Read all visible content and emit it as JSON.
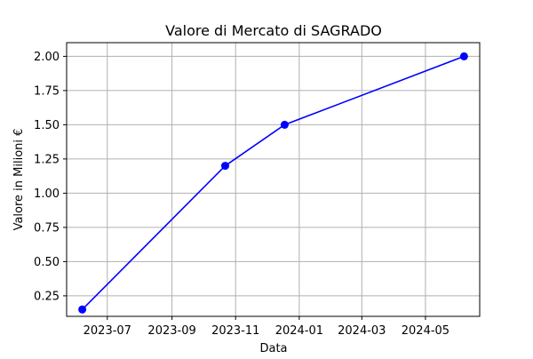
{
  "chart_data": {
    "type": "line",
    "title": "Valore di Mercato di SAGRADO",
    "xlabel": "Data",
    "ylabel": "Valore in Milioni €",
    "x_scale": "date",
    "xlim": [
      "2023-05-23",
      "2024-06-22"
    ],
    "ylim": [
      0.1,
      2.1
    ],
    "x_ticks": [
      {
        "date": "2023-07-01",
        "label": "2023-07"
      },
      {
        "date": "2023-09-01",
        "label": "2023-09"
      },
      {
        "date": "2023-11-01",
        "label": "2023-11"
      },
      {
        "date": "2024-01-01",
        "label": "2024-01"
      },
      {
        "date": "2024-03-01",
        "label": "2024-03"
      },
      {
        "date": "2024-05-01",
        "label": "2024-05"
      }
    ],
    "y_ticks": [
      {
        "value": 0.25,
        "label": "0.25"
      },
      {
        "value": 0.5,
        "label": "0.50"
      },
      {
        "value": 0.75,
        "label": "0.75"
      },
      {
        "value": 1.0,
        "label": "1.00"
      },
      {
        "value": 1.25,
        "label": "1.25"
      },
      {
        "value": 1.5,
        "label": "1.50"
      },
      {
        "value": 1.75,
        "label": "1.75"
      },
      {
        "value": 2.0,
        "label": "2.00"
      }
    ],
    "grid": true,
    "series": [
      {
        "color": "#0000ff",
        "marker": "circle",
        "points": [
          {
            "x": "2023-06-07",
            "y": 0.15
          },
          {
            "x": "2023-10-22",
            "y": 1.2
          },
          {
            "x": "2023-12-18",
            "y": 1.5
          },
          {
            "x": "2024-06-07",
            "y": 2.0
          }
        ]
      }
    ]
  }
}
